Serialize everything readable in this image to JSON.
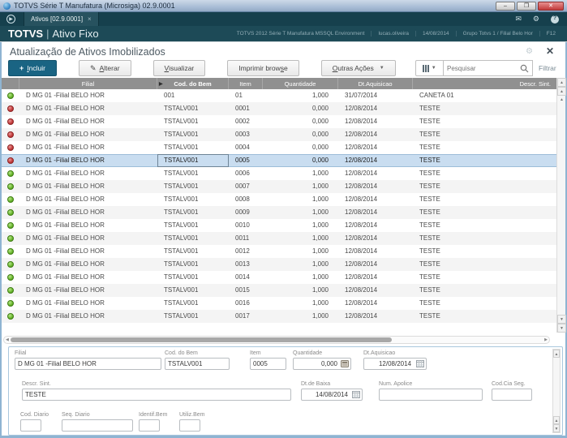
{
  "window": {
    "title": "TOTVS Série T Manufatura (Microsiga) 02.9.0001",
    "controls": {
      "minimize": "–",
      "maximize": "❐",
      "close": "✕"
    }
  },
  "tabbar": {
    "tab_label": "Ativos [02.9.0001]",
    "tab_close": "×",
    "icons": {
      "mail": "✉",
      "gear": "⚙",
      "help": "?"
    }
  },
  "header": {
    "brand": "TOTVS",
    "separator": "|",
    "module": "Ativo Fixo",
    "info": [
      "TOTVS 2012 Série T Manufatura MSSQL Environment",
      "lucas.oliveira",
      "14/08/2014",
      "Grupo Totvs 1 / Filial Belo Hor",
      "F12"
    ]
  },
  "page": {
    "title": "Atualização de Ativos Imobilizados",
    "gear_icon": "⚙",
    "close_icon": "✕"
  },
  "toolbar": {
    "buttons": [
      {
        "label": "Incluir",
        "accesskey": "I",
        "primary": true,
        "icon": "plus",
        "glyph": "+"
      },
      {
        "label": "Alterar",
        "accesskey": "A",
        "icon": "pencil",
        "glyph": "✎"
      },
      {
        "label": "Visualizar",
        "accesskey": "V"
      },
      {
        "label": "Imprimir browse",
        "accesskey": "s"
      },
      {
        "label": "Outras Ações",
        "accesskey": "O",
        "caret": true
      }
    ],
    "search_placeholder": "Pesquisar",
    "filter_label": "Filtrar"
  },
  "table": {
    "columns": [
      "Filial",
      "Cod. do Bem",
      "Item",
      "Quantidade",
      "Dt.Aquisicao",
      "Descr. Sint."
    ],
    "sort_column_index": 1,
    "selected_row_index": 5,
    "rows": [
      {
        "status": "green",
        "filial": "D MG 01 -Filial BELO HOR",
        "cod": "001",
        "item": "01",
        "qty": "1,000",
        "date": "31/07/2014",
        "desc": "CANETA 01"
      },
      {
        "status": "red",
        "filial": "D MG 01 -Filial BELO HOR",
        "cod": "TSTALV001",
        "item": "0001",
        "qty": "0,000",
        "date": "12/08/2014",
        "desc": "TESTE"
      },
      {
        "status": "red",
        "filial": "D MG 01 -Filial BELO HOR",
        "cod": "TSTALV001",
        "item": "0002",
        "qty": "0,000",
        "date": "12/08/2014",
        "desc": "TESTE"
      },
      {
        "status": "red",
        "filial": "D MG 01 -Filial BELO HOR",
        "cod": "TSTALV001",
        "item": "0003",
        "qty": "0,000",
        "date": "12/08/2014",
        "desc": "TESTE"
      },
      {
        "status": "red",
        "filial": "D MG 01 -Filial BELO HOR",
        "cod": "TSTALV001",
        "item": "0004",
        "qty": "0,000",
        "date": "12/08/2014",
        "desc": "TESTE"
      },
      {
        "status": "red",
        "filial": "D MG 01 -Filial BELO HOR",
        "cod": "TSTALV001",
        "item": "0005",
        "qty": "0,000",
        "date": "12/08/2014",
        "desc": "TESTE",
        "selected": true
      },
      {
        "status": "green",
        "filial": "D MG 01 -Filial BELO HOR",
        "cod": "TSTALV001",
        "item": "0006",
        "qty": "1,000",
        "date": "12/08/2014",
        "desc": "TESTE"
      },
      {
        "status": "green",
        "filial": "D MG 01 -Filial BELO HOR",
        "cod": "TSTALV001",
        "item": "0007",
        "qty": "1,000",
        "date": "12/08/2014",
        "desc": "TESTE"
      },
      {
        "status": "green",
        "filial": "D MG 01 -Filial BELO HOR",
        "cod": "TSTALV001",
        "item": "0008",
        "qty": "1,000",
        "date": "12/08/2014",
        "desc": "TESTE"
      },
      {
        "status": "green",
        "filial": "D MG 01 -Filial BELO HOR",
        "cod": "TSTALV001",
        "item": "0009",
        "qty": "1,000",
        "date": "12/08/2014",
        "desc": "TESTE"
      },
      {
        "status": "green",
        "filial": "D MG 01 -Filial BELO HOR",
        "cod": "TSTALV001",
        "item": "0010",
        "qty": "1,000",
        "date": "12/08/2014",
        "desc": "TESTE"
      },
      {
        "status": "green",
        "filial": "D MG 01 -Filial BELO HOR",
        "cod": "TSTALV001",
        "item": "0011",
        "qty": "1,000",
        "date": "12/08/2014",
        "desc": "TESTE"
      },
      {
        "status": "green",
        "filial": "D MG 01 -Filial BELO HOR",
        "cod": "TSTALV001",
        "item": "0012",
        "qty": "1,000",
        "date": "12/08/2014",
        "desc": "TESTE"
      },
      {
        "status": "green",
        "filial": "D MG 01 -Filial BELO HOR",
        "cod": "TSTALV001",
        "item": "0013",
        "qty": "1,000",
        "date": "12/08/2014",
        "desc": "TESTE"
      },
      {
        "status": "green",
        "filial": "D MG 01 -Filial BELO HOR",
        "cod": "TSTALV001",
        "item": "0014",
        "qty": "1,000",
        "date": "12/08/2014",
        "desc": "TESTE"
      },
      {
        "status": "green",
        "filial": "D MG 01 -Filial BELO HOR",
        "cod": "TSTALV001",
        "item": "0015",
        "qty": "1,000",
        "date": "12/08/2014",
        "desc": "TESTE"
      },
      {
        "status": "green",
        "filial": "D MG 01 -Filial BELO HOR",
        "cod": "TSTALV001",
        "item": "0016",
        "qty": "1,000",
        "date": "12/08/2014",
        "desc": "TESTE"
      },
      {
        "status": "green",
        "filial": "D MG 01 -Filial BELO HOR",
        "cod": "TSTALV001",
        "item": "0017",
        "qty": "1,000",
        "date": "12/08/2014",
        "desc": "TESTE"
      }
    ]
  },
  "form": {
    "fields": {
      "filial": {
        "label": "Filial",
        "value": "D MG 01 -Filial BELO HOR"
      },
      "cod_bem": {
        "label": "Cod. do Bem",
        "value": "TSTALV001"
      },
      "item": {
        "label": "Item",
        "value": "0005"
      },
      "quantidade": {
        "label": "Quantidade",
        "value": "0,000"
      },
      "dt_aquisicao": {
        "label": "Dt.Aquisicao",
        "value": "12/08/2014"
      },
      "descr_sint": {
        "label": "Descr. Sint.",
        "value": "TESTE"
      },
      "dt_baixa": {
        "label": "Dt.de Baixa",
        "value": "14/08/2014"
      },
      "num_apolice": {
        "label": "Num. Apolice",
        "value": ""
      },
      "cod_cia_seg": {
        "label": "Cod.Cia Seg.",
        "value": ""
      },
      "cod_diario": {
        "label": "Cod. Diario",
        "value": ""
      },
      "seq_diario": {
        "label": "Seq. Diario",
        "value": ""
      },
      "identif_bem": {
        "label": "Identif.Bem",
        "value": ""
      },
      "utiliz_bem": {
        "label": "Utiliz.Bem",
        "value": ""
      }
    }
  },
  "colors": {
    "accent": "#1a6483",
    "header_teal": "#1d4a57",
    "selected_row": "#c9ddf0",
    "status_green": "#6ab82e",
    "status_red": "#c43b3b",
    "grid_header_gray": "#909090"
  }
}
